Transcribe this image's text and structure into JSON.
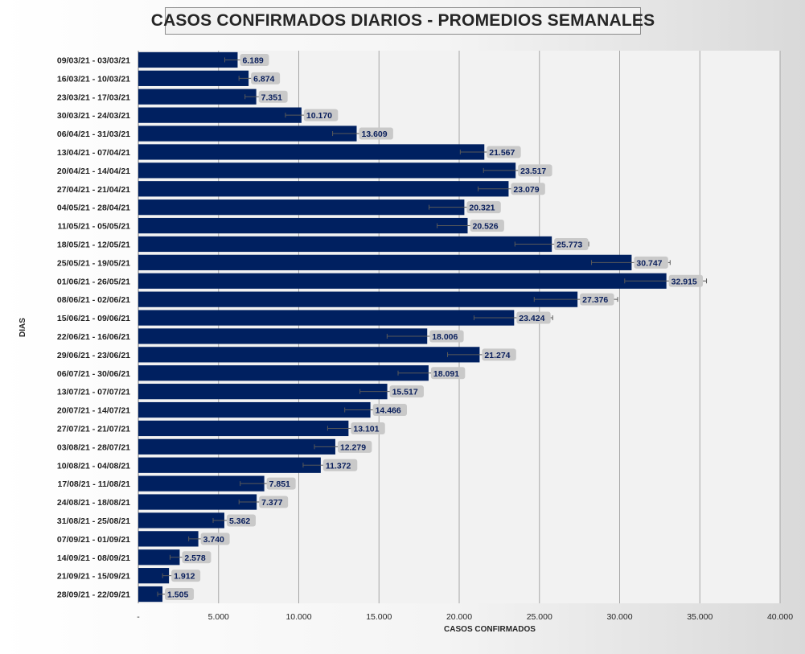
{
  "chart_data": {
    "type": "bar",
    "orientation": "horizontal",
    "title": "CASOS CONFIRMADOS DIARIOS - PROMEDIOS SEMANALES",
    "xlabel": "CASOS CONFIRMADOS",
    "ylabel": "DIAS",
    "xlim": [
      0,
      40000
    ],
    "x_ticks": [
      0,
      5000,
      10000,
      15000,
      20000,
      25000,
      30000,
      35000,
      40000
    ],
    "x_tick_labels": [
      "-",
      "5.000",
      "10.000",
      "15.000",
      "20.000",
      "25.000",
      "30.000",
      "35.000",
      "40.000"
    ],
    "grid": "vertical",
    "legend": "none",
    "bar_color": "#002060",
    "plot_bg": "#f2f2f2",
    "gridline_color": "#a6a6a6",
    "label_bg": "#c9c9c9",
    "error_bars": true,
    "categories": [
      "09/03/21 - 03/03/21",
      "16/03/21 - 10/03/21",
      "23/03/21 - 17/03/21",
      "30/03/21 - 24/03/21",
      "06/04/21 - 31/03/21",
      "13/04/21 - 07/04/21",
      "20/04/21 - 14/04/21",
      "27/04/21 - 21/04/21",
      "04/05/21 - 28/04/21",
      "11/05/21 - 05/05/21",
      "18/05/21 - 12/05/21",
      "25/05/21 - 19/05/21",
      "01/06/21 - 26/05/21",
      "08/06/21 - 02/06/21",
      "15/06/21 - 09/06/21",
      "22/06/21 - 16/06/21",
      "29/06/21 - 23/06/21",
      "06/07/21 - 30/06/21",
      "13/07/21 - 07/07/21",
      "20/07/21 - 14/07/21",
      "27/07/21 - 21/07/21",
      "03/08/21 - 28/07/21",
      "10/08/21 - 04/08/21",
      "17/08/21 - 11/08/21",
      "24/08/21 - 18/08/21",
      "31/08/21 - 25/08/21",
      "07/09/21 - 01/09/21",
      "14/09/21 - 08/09/21",
      "21/09/21 - 15/09/21",
      "28/09/21 - 22/09/21"
    ],
    "values": [
      6189,
      6874,
      7351,
      10170,
      13609,
      21567,
      23517,
      23079,
      20321,
      20526,
      25773,
      30747,
      32915,
      27376,
      23424,
      18006,
      21274,
      18091,
      15517,
      14466,
      13101,
      12279,
      11372,
      7851,
      7377,
      5362,
      3740,
      2578,
      1912,
      1505
    ],
    "value_labels": [
      "6.189",
      "6.874",
      "7.351",
      "10.170",
      "13.609",
      "21.567",
      "23.517",
      "23.079",
      "20.321",
      "20.526",
      "25.773",
      "30.747",
      "32.915",
      "27.376",
      "23.424",
      "18.006",
      "21.274",
      "18.091",
      "15.517",
      "14.466",
      "13.101",
      "12.279",
      "11.372",
      "7.851",
      "7.377",
      "5.362",
      "3.740",
      "2.578",
      "1.912",
      "1.505"
    ],
    "error_plus": [
      300,
      350,
      350,
      800,
      800,
      1000,
      1000,
      1000,
      1000,
      1000,
      2300,
      2400,
      2500,
      2500,
      2400,
      1000,
      1000,
      1000,
      1000,
      1000,
      1000,
      1000,
      1000,
      1000,
      1000,
      600,
      500,
      400,
      300,
      200
    ],
    "error_minus": [
      800,
      600,
      700,
      1000,
      1500,
      1500,
      2000,
      1900,
      2200,
      1900,
      2300,
      2500,
      2600,
      2700,
      2500,
      2500,
      2000,
      1900,
      1700,
      1600,
      1300,
      1300,
      1100,
      1500,
      1100,
      700,
      600,
      600,
      400,
      300
    ]
  }
}
